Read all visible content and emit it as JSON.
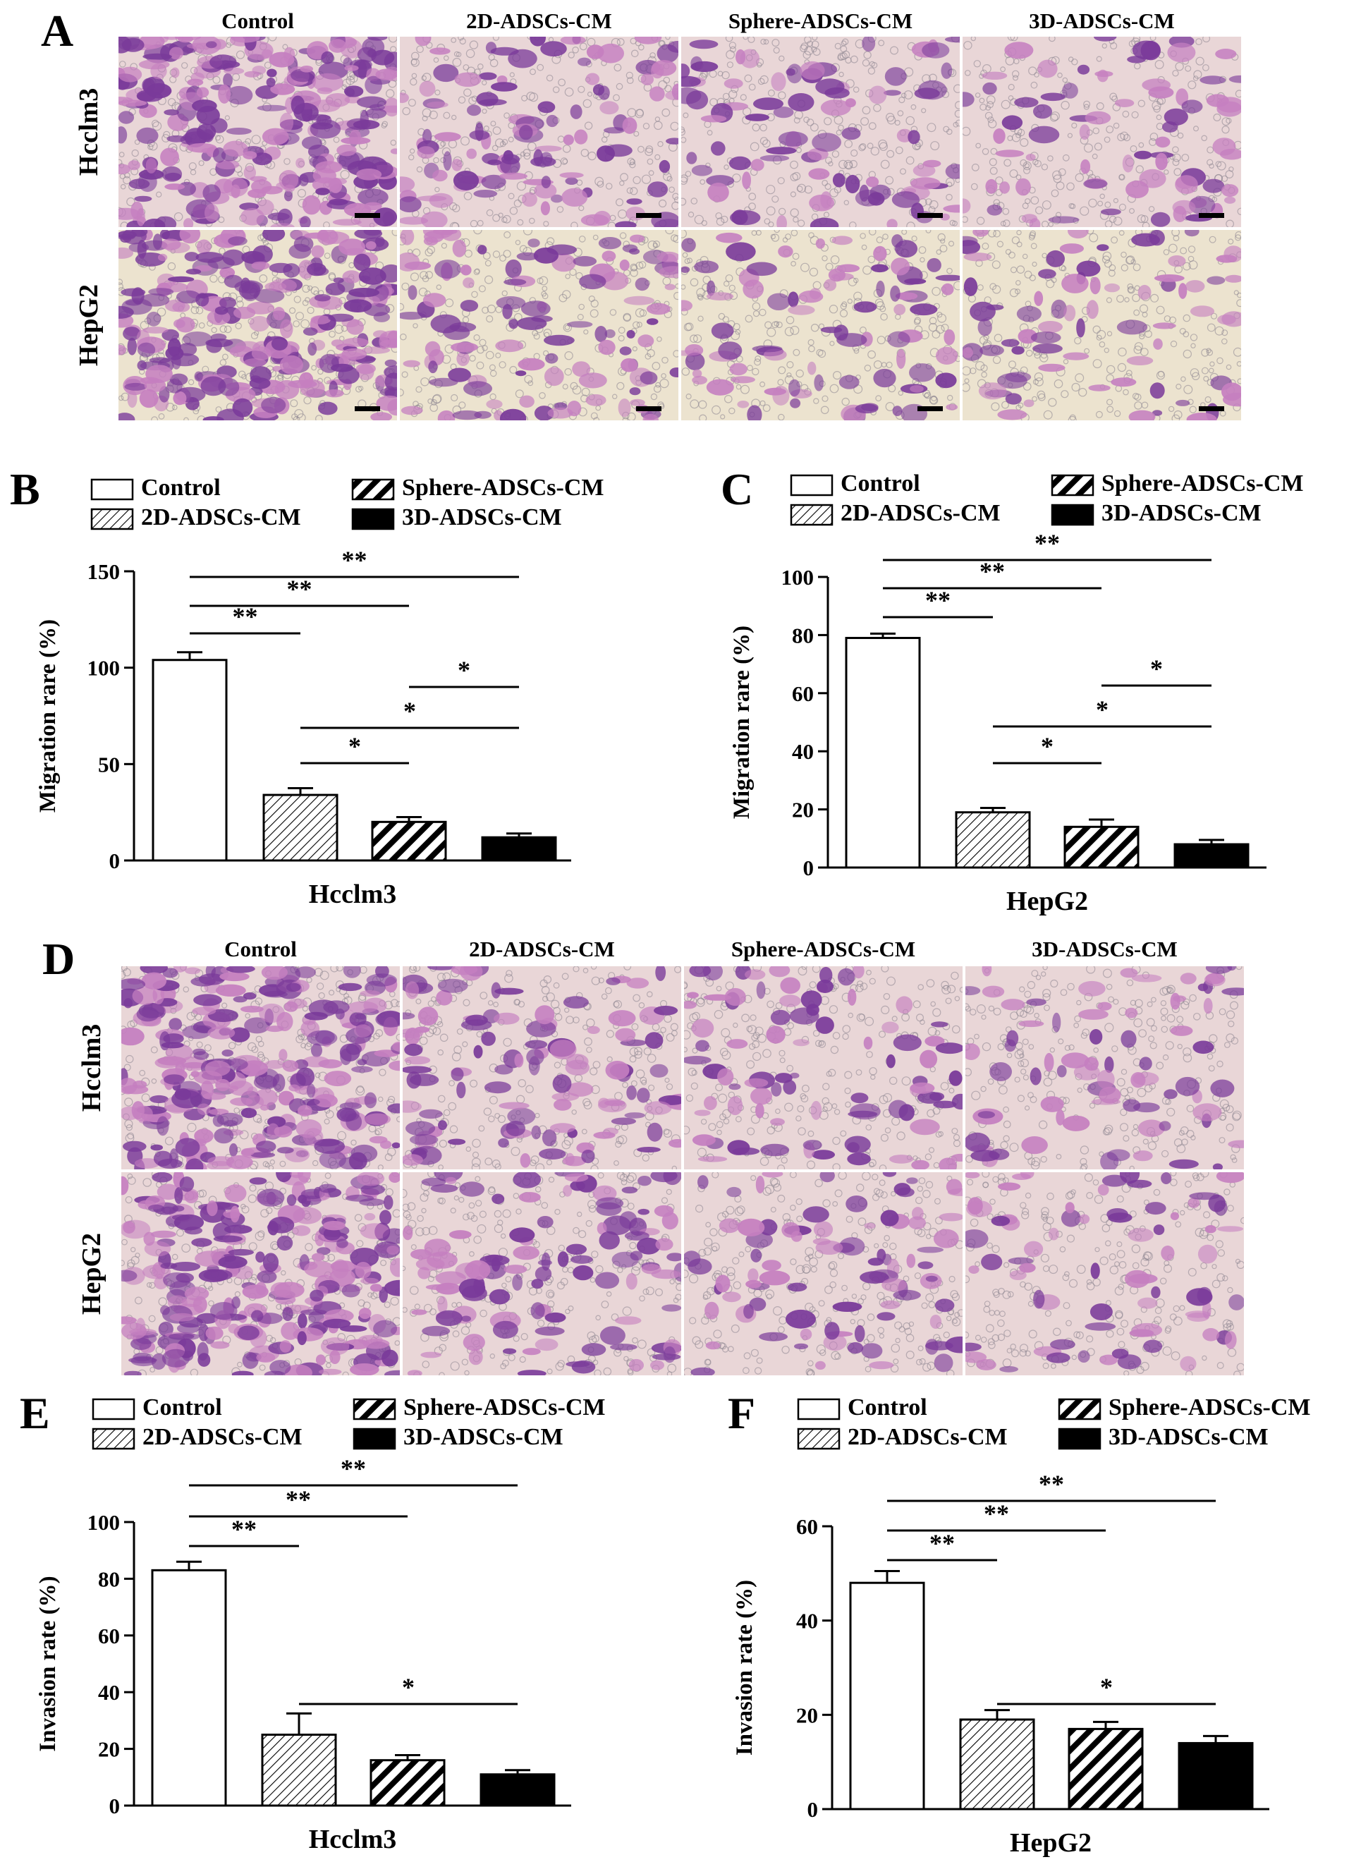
{
  "panels": {
    "A": {
      "letter": "A",
      "columns": [
        "Control",
        "2D-ADSCs-CM",
        "Sphere-ADSCs-CM",
        "3D-ADSCs-CM"
      ],
      "rows": [
        "Hcclm3",
        "HepG2"
      ]
    },
    "D": {
      "letter": "D",
      "columns": [
        "Control",
        "2D-ADSCs-CM",
        "Sphere-ADSCs-CM",
        "3D-ADSCs-CM"
      ],
      "rows": [
        "Hcclm3",
        "HepG2"
      ]
    }
  },
  "colors": {
    "stain_dark": "#7a3a9a",
    "stain_light": "#c57fc0",
    "background_pink": "#e9d6d7",
    "background_cream": "#ece3cf"
  },
  "chart_data": [
    {
      "letter": "B",
      "type": "bar",
      "legend": [
        "Control",
        "2D-ADSCs-CM",
        "Sphere-ADSCs-CM",
        "3D-ADSCs-CM"
      ],
      "categories": [
        "Control",
        "2D-ADSCs-CM",
        "Sphere-ADSCs-CM",
        "3D-ADSCs-CM"
      ],
      "values": [
        104,
        34,
        20,
        12
      ],
      "errors": [
        4,
        3.5,
        2.5,
        2
      ],
      "xlabel": "Hcclm3",
      "ylabel": "Migration rare (%)",
      "ylim": [
        0,
        150
      ],
      "yticks": [
        0,
        50,
        100,
        150
      ],
      "significance": [
        {
          "from": 0,
          "to": 3,
          "label": "**"
        },
        {
          "from": 0,
          "to": 2,
          "label": "**"
        },
        {
          "from": 0,
          "to": 1,
          "label": "**"
        },
        {
          "from": 2,
          "to": 3,
          "label": "*"
        },
        {
          "from": 1,
          "to": 3,
          "label": "*"
        },
        {
          "from": 1,
          "to": 2,
          "label": "*"
        }
      ]
    },
    {
      "letter": "C",
      "type": "bar",
      "legend": [
        "Control",
        "2D-ADSCs-CM",
        "Sphere-ADSCs-CM",
        "3D-ADSCs-CM"
      ],
      "categories": [
        "Control",
        "2D-ADSCs-CM",
        "Sphere-ADSCs-CM",
        "3D-ADSCs-CM"
      ],
      "values": [
        79,
        19,
        14,
        8
      ],
      "errors": [
        1.5,
        1.5,
        2.5,
        1.5
      ],
      "xlabel": "HepG2",
      "ylabel": "Migration rare (%)",
      "ylim": [
        0,
        100
      ],
      "yticks": [
        0,
        20,
        40,
        60,
        80,
        100
      ],
      "significance": [
        {
          "from": 0,
          "to": 3,
          "label": "**"
        },
        {
          "from": 0,
          "to": 2,
          "label": "**"
        },
        {
          "from": 0,
          "to": 1,
          "label": "**"
        },
        {
          "from": 2,
          "to": 3,
          "label": "*"
        },
        {
          "from": 1,
          "to": 3,
          "label": "*"
        },
        {
          "from": 1,
          "to": 2,
          "label": "*"
        }
      ]
    },
    {
      "letter": "E",
      "type": "bar",
      "legend": [
        "Control",
        "2D-ADSCs-CM",
        "Sphere-ADSCs-CM",
        "3D-ADSCs-CM"
      ],
      "categories": [
        "Control",
        "2D-ADSCs-CM",
        "Sphere-ADSCs-CM",
        "3D-ADSCs-CM"
      ],
      "values": [
        83,
        25,
        16,
        11
      ],
      "errors": [
        3,
        7.5,
        1.8,
        1.5
      ],
      "xlabel": "Hcclm3",
      "ylabel": "Invasion rate (%)",
      "ylim": [
        0,
        100
      ],
      "yticks": [
        0,
        20,
        40,
        60,
        80,
        100
      ],
      "significance": [
        {
          "from": 0,
          "to": 3,
          "label": "**"
        },
        {
          "from": 0,
          "to": 2,
          "label": "**"
        },
        {
          "from": 0,
          "to": 1,
          "label": "**"
        },
        {
          "from": 1,
          "to": 3,
          "label": "*"
        }
      ]
    },
    {
      "letter": "F",
      "type": "bar",
      "legend": [
        "Control",
        "2D-ADSCs-CM",
        "Sphere-ADSCs-CM",
        "3D-ADSCs-CM"
      ],
      "categories": [
        "Control",
        "2D-ADSCs-CM",
        "Sphere-ADSCs-CM",
        "3D-ADSCs-CM"
      ],
      "values": [
        48,
        19,
        17,
        14
      ],
      "errors": [
        2.5,
        2,
        1.5,
        1.5
      ],
      "xlabel": "HepG2",
      "ylabel": "Invasion rate (%)",
      "ylim": [
        0,
        60
      ],
      "yticks": [
        0,
        20,
        40,
        60
      ],
      "significance": [
        {
          "from": 0,
          "to": 3,
          "label": "**"
        },
        {
          "from": 0,
          "to": 2,
          "label": "**"
        },
        {
          "from": 0,
          "to": 1,
          "label": "**"
        },
        {
          "from": 1,
          "to": 3,
          "label": "*"
        }
      ]
    }
  ]
}
